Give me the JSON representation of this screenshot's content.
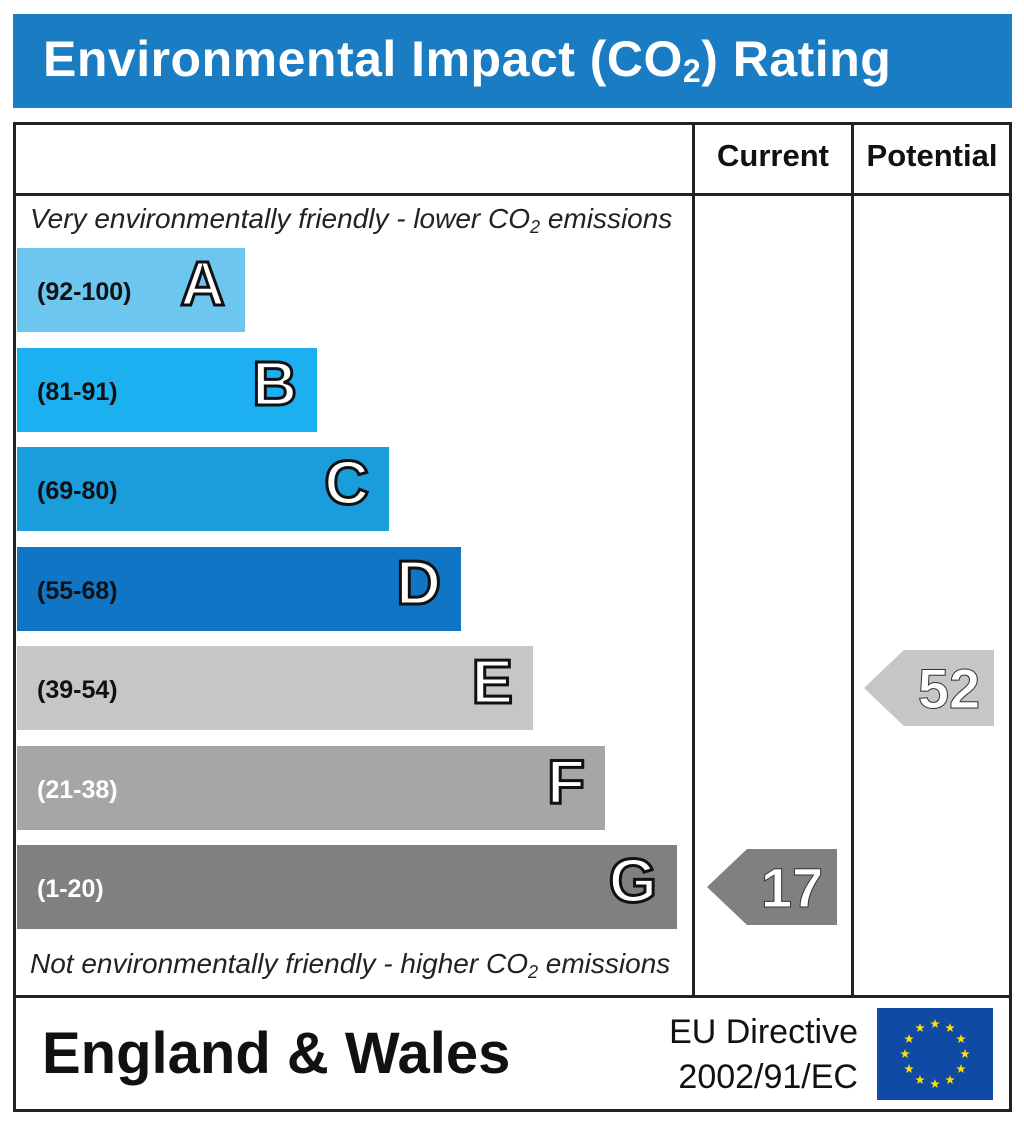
{
  "title": "Environmental Impact (CO",
  "title_subscript": "2",
  "title_suffix": ") Rating",
  "columns": {
    "current": "Current",
    "potential": "Potential"
  },
  "top_caption": {
    "pre": "Very environmentally friendly - lower CO",
    "sub": "2",
    "post": " emissions"
  },
  "bottom_caption": {
    "pre": "Not environmentally friendly - higher CO",
    "sub": "2",
    "post": " emissions"
  },
  "footer": {
    "country": "England & Wales",
    "directive_line1": "EU Directive",
    "directive_line2": "2002/91/EC"
  },
  "colors": {
    "title_bar": "#1a7dc4",
    "eu_flag": "#0f4ba4",
    "eu_star": "#ffdd00"
  },
  "chart_data": {
    "type": "bar",
    "categories": [
      "A",
      "B",
      "C",
      "D",
      "E",
      "F",
      "G"
    ],
    "ranges": [
      "(92-100)",
      "(81-91)",
      "(69-80)",
      "(55-68)",
      "(39-54)",
      "(21-38)",
      "(1-20)"
    ],
    "band_colors": [
      "#6cc6f0",
      "#1cb0f0",
      "#1b9ddb",
      "#0f75c4",
      "#c6c6c6",
      "#a6a6a6",
      "#808080"
    ],
    "range_text_colors": [
      "#111111",
      "#111111",
      "#111111",
      "#111111",
      "#111111",
      "#ffffff",
      "#ffffff"
    ],
    "current": {
      "value": 17,
      "band": "G"
    },
    "potential": {
      "value": 52,
      "band": "E"
    },
    "indicator_colors": {
      "current": "#808080",
      "potential": "#c6c6c6"
    }
  }
}
